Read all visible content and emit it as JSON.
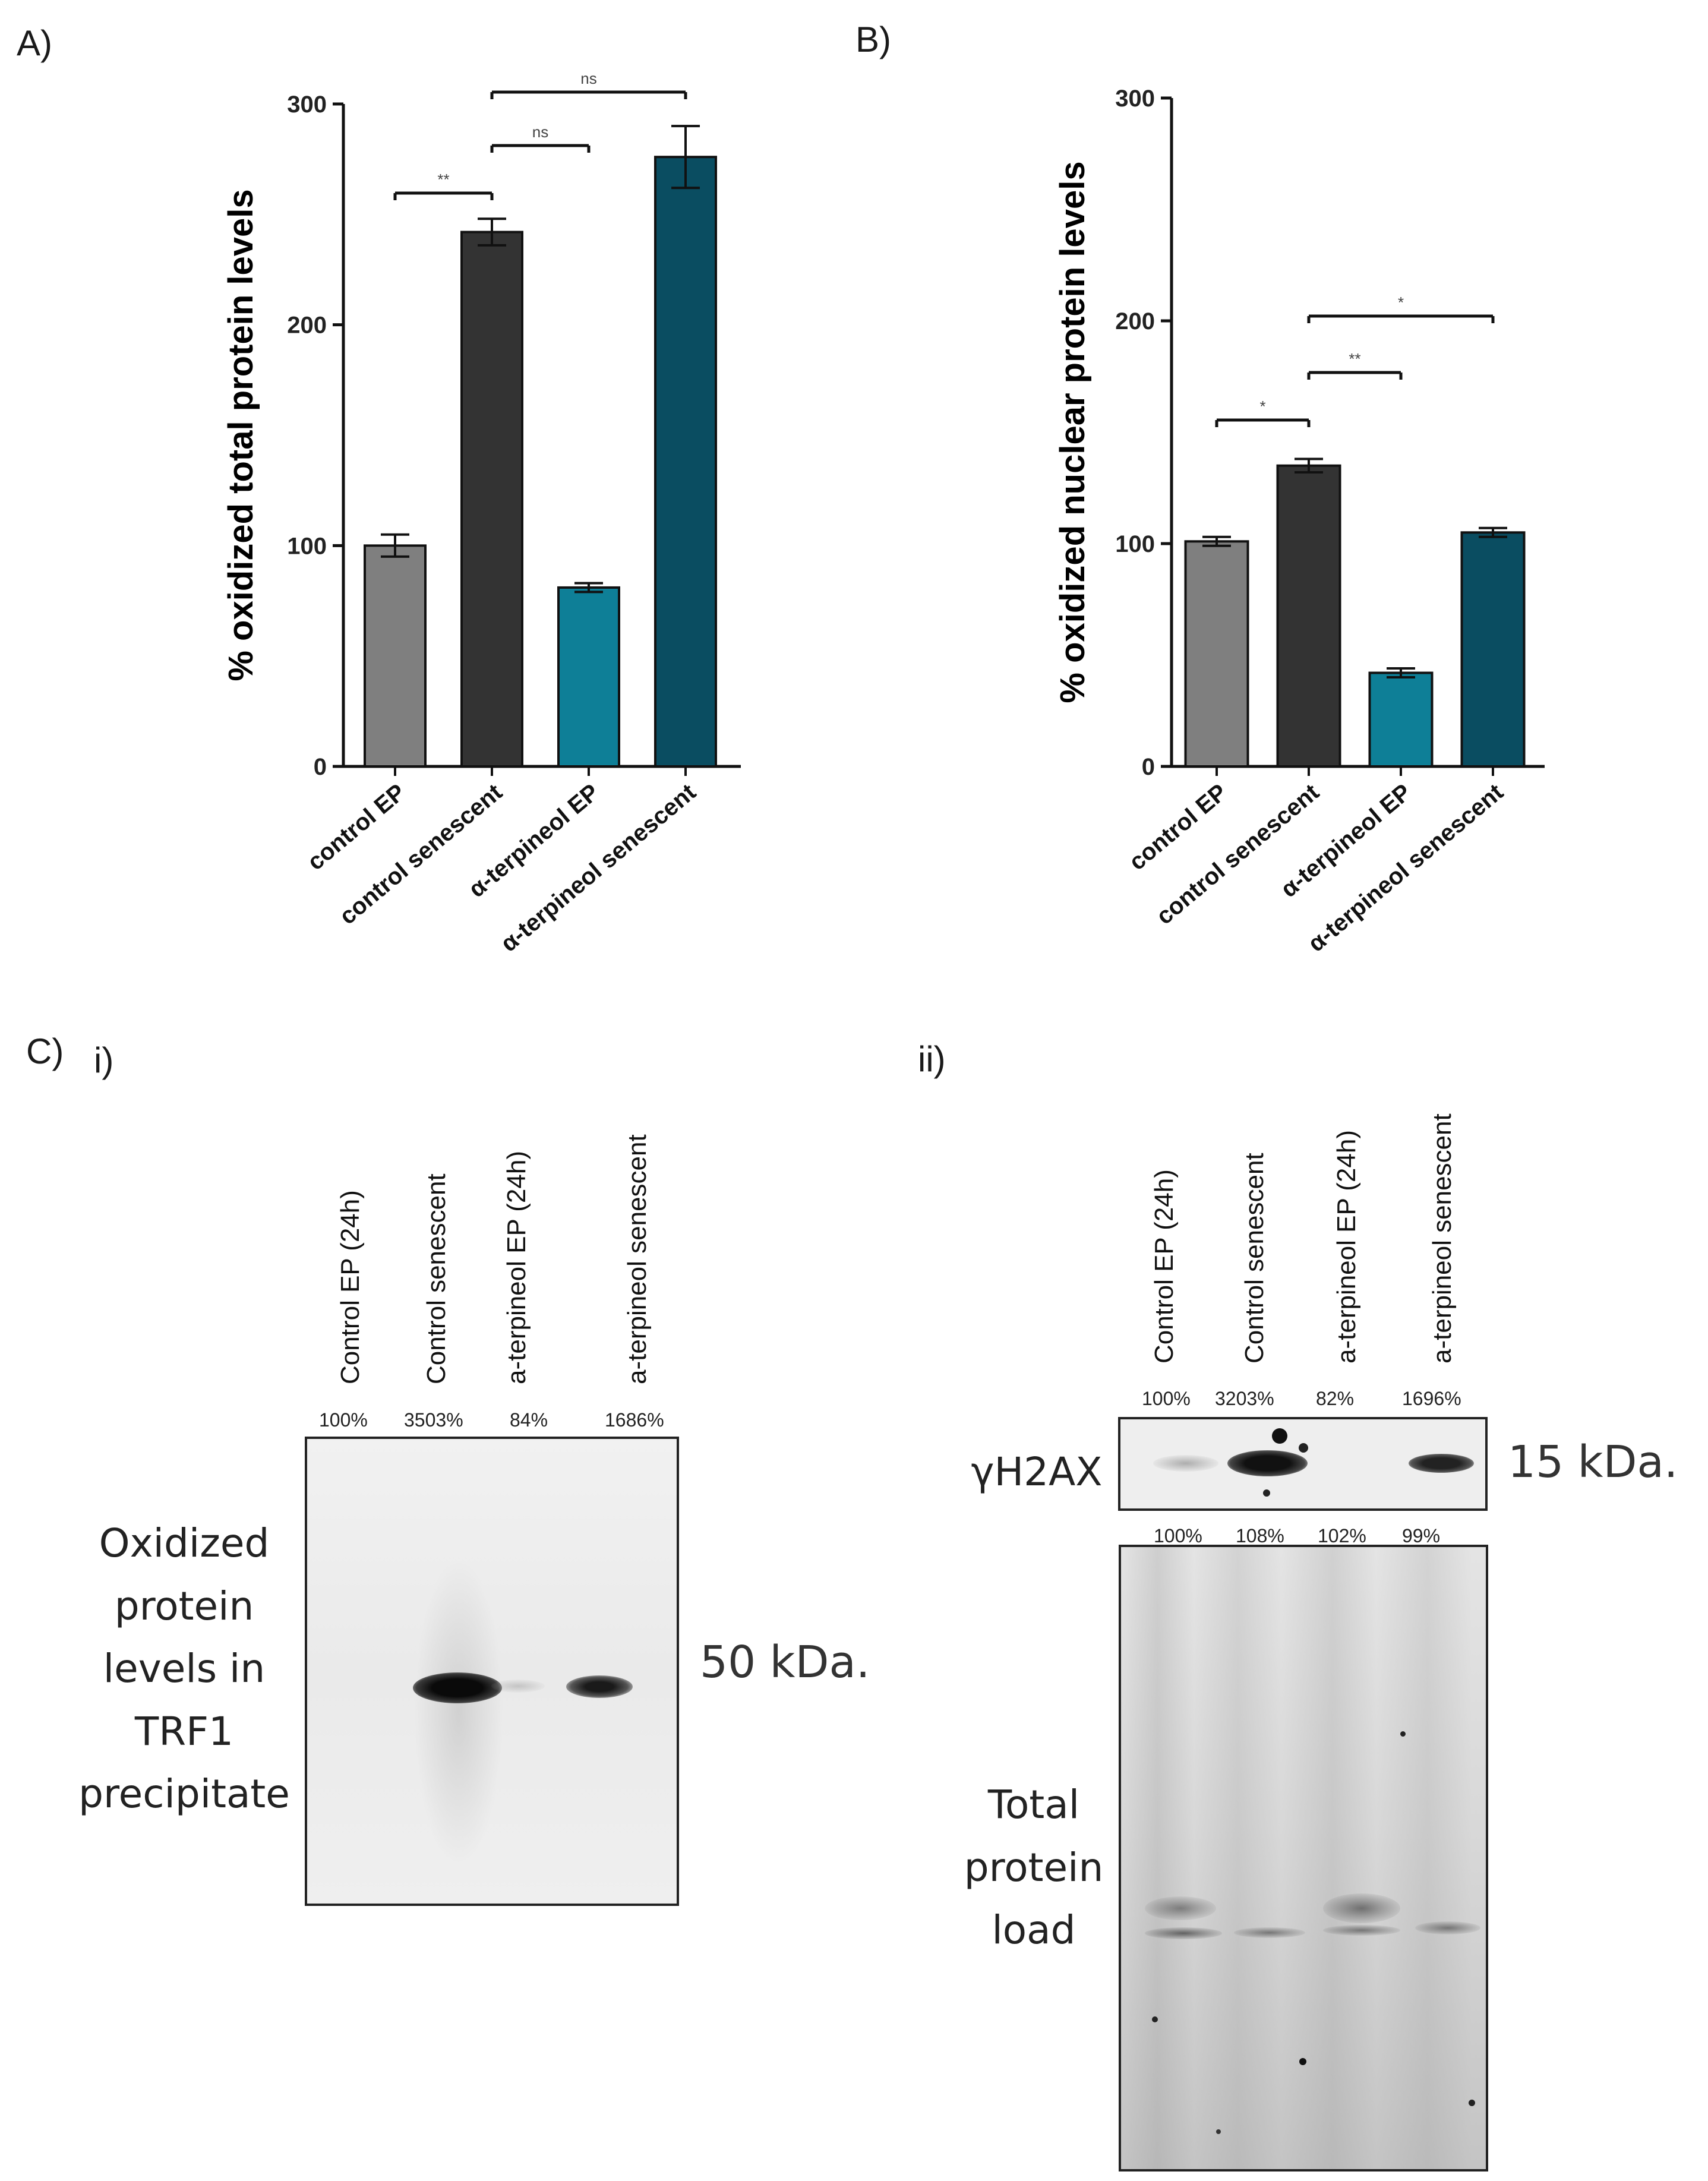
{
  "panels": {
    "a": {
      "letter": "A)"
    },
    "b": {
      "letter": "B)"
    },
    "c": {
      "letter": "C)",
      "sub_i": "i)",
      "sub_ii": "ii)"
    }
  },
  "chart_data": [
    {
      "type": "bar",
      "panel": "A)",
      "ylabel": "% oxidized total protein levels",
      "ylim": [
        0,
        300
      ],
      "yticks": [
        0,
        100,
        200,
        300
      ],
      "categories": [
        "control EP",
        "control senescent",
        "α-terpineol EP",
        "α-terpineol senescent"
      ],
      "values": [
        100,
        242,
        81,
        276
      ],
      "errors": [
        5,
        6,
        2,
        14
      ],
      "colors": [
        "#7f7f7f",
        "#333333",
        "#0e7f97",
        "#0a4d61"
      ],
      "significance": [
        {
          "from": 0,
          "to": 1,
          "label": "**"
        },
        {
          "from": 1,
          "to": 2,
          "label": "ns"
        },
        {
          "from": 1,
          "to": 3,
          "label": "ns"
        }
      ]
    },
    {
      "type": "bar",
      "panel": "B)",
      "ylabel": "% oxidized nuclear protein levels",
      "ylim": [
        0,
        300
      ],
      "yticks": [
        0,
        100,
        200,
        300
      ],
      "categories": [
        "control EP",
        "control senescent",
        "α-terpineol EP",
        "α-terpineol senescent"
      ],
      "values": [
        101,
        135,
        42,
        105
      ],
      "errors": [
        2,
        3,
        2,
        2
      ],
      "colors": [
        "#7f7f7f",
        "#333333",
        "#0e7f97",
        "#0a4d61"
      ],
      "significance": [
        {
          "from": 0,
          "to": 1,
          "label": "*"
        },
        {
          "from": 1,
          "to": 2,
          "label": "**"
        },
        {
          "from": 1,
          "to": 3,
          "label": "*"
        }
      ]
    }
  ],
  "blot_i": {
    "lanes": [
      "Control EP (24h)",
      "Control senescent",
      "a-terpineol EP (24h)",
      "a-terpineol senescent"
    ],
    "percentages": [
      "100%",
      "3503%",
      "84%",
      "1686%"
    ],
    "side_label": [
      "Oxidized",
      "protein",
      "levels in",
      "TRF1",
      "precipitate"
    ],
    "size": "50 kDa."
  },
  "blot_ii": {
    "lanes": [
      "Control EP (24h)",
      "Control senescent",
      "a-terpineol EP (24h)",
      "a-terpineol senescent"
    ],
    "percentages_top": [
      "100%",
      "3203%",
      "82%",
      "1696%"
    ],
    "top_label": "γH2AX",
    "size": "15 kDa.",
    "percentages_bottom": [
      "100%",
      "108%",
      "102%",
      "99%"
    ],
    "bottom_label": [
      "Total",
      "protein",
      "load"
    ]
  }
}
